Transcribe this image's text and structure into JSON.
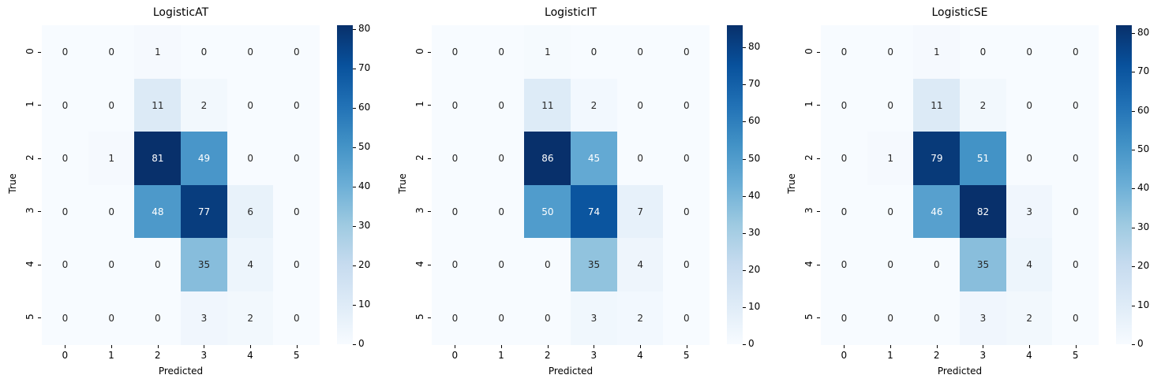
{
  "chart_data": [
    {
      "type": "heatmap",
      "title": "LogisticAT",
      "xlabel": "Predicted",
      "ylabel": "True",
      "x_ticks": [
        "0",
        "1",
        "2",
        "3",
        "4",
        "5"
      ],
      "y_ticks": [
        "0",
        "1",
        "2",
        "3",
        "4",
        "5"
      ],
      "matrix": [
        [
          0,
          0,
          1,
          0,
          0,
          0
        ],
        [
          0,
          0,
          11,
          2,
          0,
          0
        ],
        [
          0,
          1,
          81,
          49,
          0,
          0
        ],
        [
          0,
          0,
          48,
          77,
          6,
          0
        ],
        [
          0,
          0,
          0,
          35,
          4,
          0
        ],
        [
          0,
          0,
          0,
          3,
          2,
          0
        ]
      ],
      "colormap": "Blues",
      "vmin": 0,
      "vmax": 81,
      "colorbar_ticks": [
        "0",
        "10",
        "20",
        "30",
        "40",
        "50",
        "60",
        "70",
        "80"
      ]
    },
    {
      "type": "heatmap",
      "title": "LogisticIT",
      "xlabel": "Predicted",
      "ylabel": "True",
      "x_ticks": [
        "0",
        "1",
        "2",
        "3",
        "4",
        "5"
      ],
      "y_ticks": [
        "0",
        "1",
        "2",
        "3",
        "4",
        "5"
      ],
      "matrix": [
        [
          0,
          0,
          1,
          0,
          0,
          0
        ],
        [
          0,
          0,
          11,
          2,
          0,
          0
        ],
        [
          0,
          0,
          86,
          45,
          0,
          0
        ],
        [
          0,
          0,
          50,
          74,
          7,
          0
        ],
        [
          0,
          0,
          0,
          35,
          4,
          0
        ],
        [
          0,
          0,
          0,
          3,
          2,
          0
        ]
      ],
      "colormap": "Blues",
      "vmin": 0,
      "vmax": 86,
      "colorbar_ticks": [
        "0",
        "10",
        "20",
        "30",
        "40",
        "50",
        "60",
        "70",
        "80"
      ]
    },
    {
      "type": "heatmap",
      "title": "LogisticSE",
      "xlabel": "Predicted",
      "ylabel": "True",
      "x_ticks": [
        "0",
        "1",
        "2",
        "3",
        "4",
        "5"
      ],
      "y_ticks": [
        "0",
        "1",
        "2",
        "3",
        "4",
        "5"
      ],
      "matrix": [
        [
          0,
          0,
          1,
          0,
          0,
          0
        ],
        [
          0,
          0,
          11,
          2,
          0,
          0
        ],
        [
          0,
          1,
          79,
          51,
          0,
          0
        ],
        [
          0,
          0,
          46,
          82,
          3,
          0
        ],
        [
          0,
          0,
          0,
          35,
          4,
          0
        ],
        [
          0,
          0,
          0,
          3,
          2,
          0
        ]
      ],
      "colormap": "Blues",
      "vmin": 0,
      "vmax": 82,
      "colorbar_ticks": [
        "0",
        "10",
        "20",
        "30",
        "40",
        "50",
        "60",
        "70",
        "80"
      ]
    }
  ],
  "colors": {
    "blues_stops": [
      "#f7fbff",
      "#deebf7",
      "#c6dbef",
      "#9ecae1",
      "#6baed6",
      "#4292c6",
      "#2171b5",
      "#08519c",
      "#08306b"
    ],
    "text_dark": "#262626",
    "text_light": "#ffffff"
  }
}
